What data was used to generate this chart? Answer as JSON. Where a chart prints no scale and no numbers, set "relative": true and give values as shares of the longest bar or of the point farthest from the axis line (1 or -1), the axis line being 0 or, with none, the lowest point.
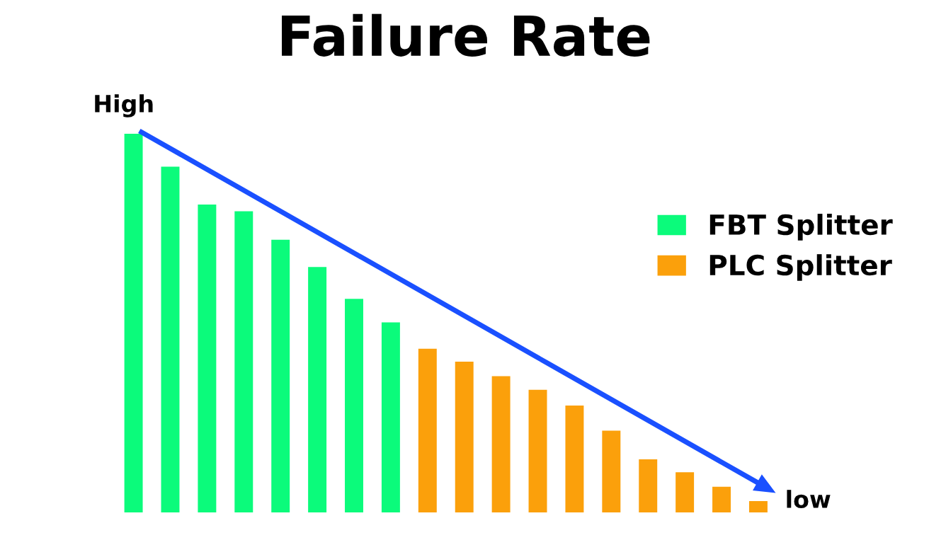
{
  "chart_data": {
    "type": "bar",
    "title": "Failure Rate",
    "relative": true,
    "categories": [
      null,
      null,
      null,
      null,
      null,
      null,
      null,
      null,
      null,
      null,
      null,
      null,
      null,
      null,
      null,
      null,
      null,
      null
    ],
    "series": [
      {
        "name": "FBT Splitter",
        "color": "#0bfb7b",
        "values": [
          1,
          0.913,
          0.813,
          0.795,
          0.72,
          0.648,
          0.564,
          0.502,
          null,
          null,
          null,
          null,
          null,
          null,
          null,
          null,
          null,
          null
        ]
      },
      {
        "name": "PLC Splitter",
        "color": "#fba00b",
        "values": [
          null,
          null,
          null,
          null,
          null,
          null,
          null,
          null,
          0.432,
          0.398,
          0.36,
          0.324,
          0.282,
          0.216,
          0.14,
          0.106,
          0.068,
          0.03
        ]
      }
    ],
    "annotations": [
      "High",
      "low"
    ],
    "stacked": true,
    "legend": "right",
    "grid": false
  }
}
